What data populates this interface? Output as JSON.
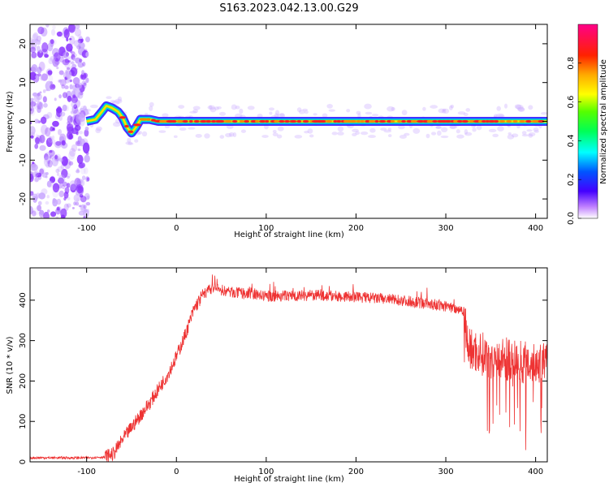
{
  "title": "S163.2023.042.13.00.G29",
  "chart_data": [
    {
      "type": "heatmap",
      "xlabel": "Height of straight line (km)",
      "ylabel": "Frequency (Hz)",
      "xlim": [
        -163,
        413
      ],
      "ylim": [
        -25,
        25
      ],
      "xticks": [
        -100,
        0,
        100,
        200,
        300,
        400
      ],
      "yticks": [
        -20,
        -10,
        0,
        10,
        20
      ],
      "colorbar": {
        "label": "Normalized spectral amplitude",
        "range": [
          0,
          1
        ],
        "ticks": [
          0.0,
          0.2,
          0.4,
          0.6,
          0.8
        ]
      },
      "noise_region_x": [
        -163,
        -98
      ],
      "ridge": {
        "x": [
          -100,
          -90,
          -83,
          -78,
          -72,
          -65,
          -60,
          -55,
          -50,
          -45,
          -40,
          -30,
          -20,
          0,
          100,
          200,
          300,
          413
        ],
        "frequency": [
          0,
          0.5,
          2.5,
          4,
          3.5,
          2.5,
          1,
          -1.5,
          -3,
          -1.5,
          0.5,
          0.5,
          0,
          0,
          0,
          0,
          0,
          0
        ],
        "peak_amplitude": 1.0
      }
    },
    {
      "type": "line",
      "xlabel": "Height of straight line (km)",
      "ylabel": "SNR (10 * v/v)",
      "xlim": [
        -163,
        413
      ],
      "ylim": [
        0,
        480
      ],
      "xticks": [
        -100,
        0,
        100,
        200,
        300,
        400
      ],
      "yticks": [
        0,
        100,
        200,
        300,
        400
      ],
      "color": "#ee3333",
      "series": [
        {
          "x": [
            -163,
            -100,
            -80,
            -70,
            -60,
            -50,
            -40,
            -30,
            -20,
            -10,
            0,
            10,
            20,
            30,
            40,
            60,
            100,
            150,
            200,
            250,
            300,
            320,
            325,
            350,
            380,
            400,
            413
          ],
          "values": [
            10,
            10,
            12,
            20,
            55,
            85,
            115,
            145,
            180,
            215,
            260,
            315,
            380,
            415,
            430,
            420,
            410,
            412,
            408,
            400,
            385,
            375,
            280,
            260,
            250,
            245,
            240
          ]
        }
      ]
    }
  ]
}
